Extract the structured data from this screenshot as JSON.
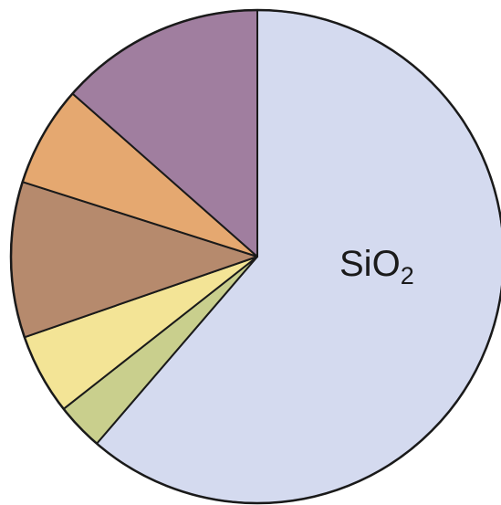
{
  "chart_data": {
    "type": "pie",
    "start": "top",
    "direction": "clockwise",
    "values": [
      61.3,
      3.1,
      5.3,
      10.2,
      6.6,
      13.5
    ],
    "labels": [
      "SiO2",
      "",
      "",
      "",
      "",
      ""
    ],
    "slices": [
      {
        "label_main": "SiO",
        "label_sub": "2",
        "value": 61.3,
        "color": "#d4daef"
      },
      {
        "label_main": "",
        "label_sub": "",
        "value": 3.1,
        "color": "#c9cf8d"
      },
      {
        "label_main": "",
        "label_sub": "",
        "value": 5.3,
        "color": "#f3e496"
      },
      {
        "label_main": "",
        "label_sub": "",
        "value": 10.2,
        "color": "#b68a6d"
      },
      {
        "label_main": "",
        "label_sub": "",
        "value": 6.6,
        "color": "#e5a870"
      },
      {
        "label_main": "",
        "label_sub": "",
        "value": 13.5,
        "color": "#a07e9f"
      }
    ]
  }
}
